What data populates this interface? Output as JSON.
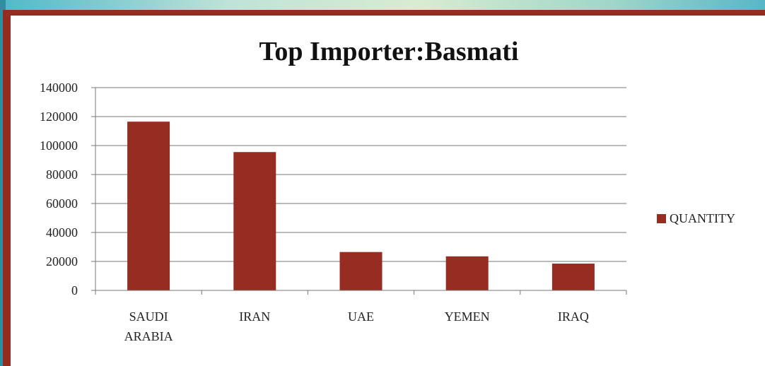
{
  "chart_data": {
    "type": "bar",
    "title": "Top Importer:Basmati",
    "categories": [
      [
        "SAUDI",
        "ARABIA"
      ],
      [
        "IRAN"
      ],
      [
        "UAE"
      ],
      [
        "YEMEN"
      ],
      [
        "IRAQ"
      ]
    ],
    "series": [
      {
        "name": "QUANTITY",
        "values": [
          116500,
          95500,
          26500,
          23500,
          18500
        ],
        "color": "#962c22"
      }
    ],
    "ylim": [
      0,
      140000
    ],
    "yticks": [
      0,
      20000,
      40000,
      60000,
      80000,
      100000,
      120000,
      140000
    ],
    "grid": true,
    "legend_position": "right"
  }
}
